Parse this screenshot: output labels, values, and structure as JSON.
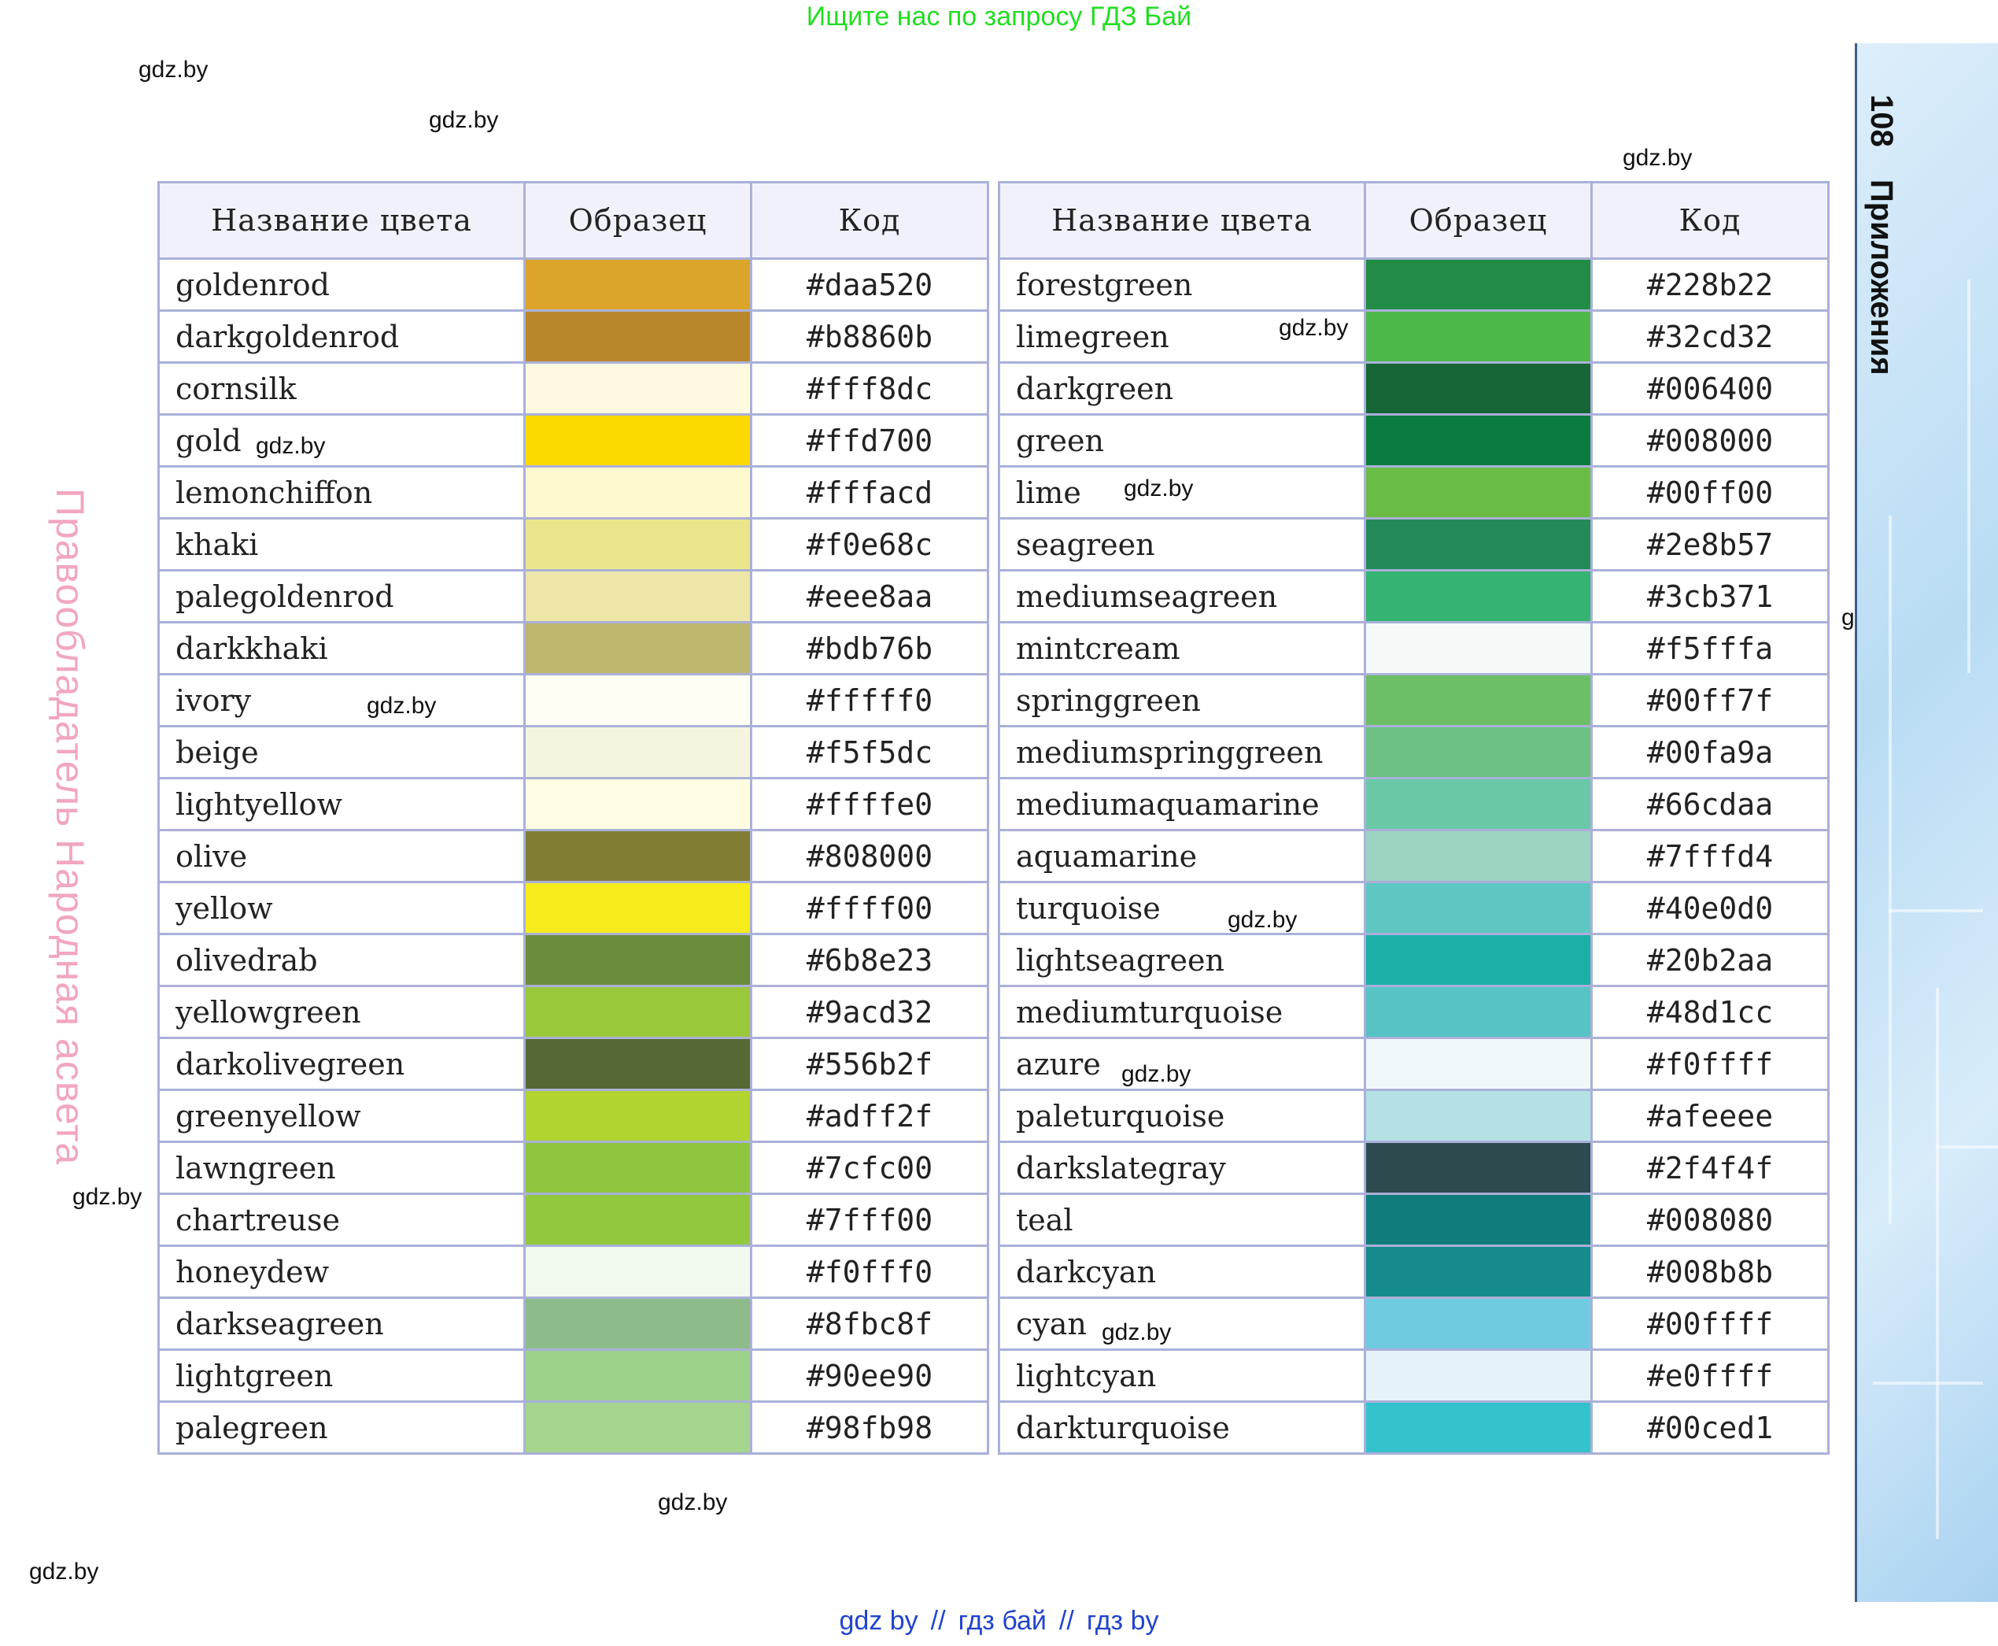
{
  "banner": "Ищите нас по запросу ГДЗ Бай",
  "watermark": "gdz.by",
  "side_label": "Правообладатель Народная асвета",
  "page_header": {
    "number": "108",
    "title": "Приложения"
  },
  "table_headers": {
    "name": "Название цвета",
    "sample": "Образец",
    "code": "Код"
  },
  "left_table": [
    {
      "name": "goldenrod",
      "code": "#daa520",
      "swatch": "#daa52a"
    },
    {
      "name": "darkgoldenrod",
      "code": "#b8860b",
      "swatch": "#b8872c"
    },
    {
      "name": "cornsilk",
      "code": "#fff8dc",
      "swatch": "#fefae0"
    },
    {
      "name": "gold",
      "code": "#ffd700",
      "swatch": "#fcda00"
    },
    {
      "name": "lemonchiffon",
      "code": "#fffacd",
      "swatch": "#fef8cf"
    },
    {
      "name": "khaki",
      "code": "#f0e68c",
      "swatch": "#ebe68c"
    },
    {
      "name": "palegoldenrod",
      "code": "#eee8aa",
      "swatch": "#ede6a8"
    },
    {
      "name": "darkkhaki",
      "code": "#bdb76b",
      "swatch": "#bdb86e"
    },
    {
      "name": "ivory",
      "code": "#fffff0",
      "swatch": "#fefef2"
    },
    {
      "name": "beige",
      "code": "#f5f5dc",
      "swatch": "#f5f5df"
    },
    {
      "name": "lightyellow",
      "code": "#ffffe0",
      "swatch": "#fefde2"
    },
    {
      "name": "olive",
      "code": "#808000",
      "swatch": "#817e33"
    },
    {
      "name": "yellow",
      "code": "#ffff00",
      "swatch": "#f6ec1c"
    },
    {
      "name": "olivedrab",
      "code": "#6b8e23",
      "swatch": "#6a8c3b"
    },
    {
      "name": "yellowgreen",
      "code": "#9acd32",
      "swatch": "#9ac83b"
    },
    {
      "name": "darkolivegreen",
      "code": "#556b2f",
      "swatch": "#556935"
    },
    {
      "name": "greenyellow",
      "code": "#adff2f",
      "swatch": "#b1d430"
    },
    {
      "name": "lawngreen",
      "code": "#7cfc00",
      "swatch": "#8ec63f"
    },
    {
      "name": "chartreuse",
      "code": "#7fff00",
      "swatch": "#91c83c"
    },
    {
      "name": "honeydew",
      "code": "#f0fff0",
      "swatch": "#f1f8ee"
    },
    {
      "name": "darkseagreen",
      "code": "#8fbc8f",
      "swatch": "#8dbb8a"
    },
    {
      "name": "lightgreen",
      "code": "#90ee90",
      "swatch": "#9cd18a"
    },
    {
      "name": "palegreen",
      "code": "#98fb98",
      "swatch": "#a5d48d"
    }
  ],
  "right_table": [
    {
      "name": "forestgreen",
      "code": "#228b22",
      "swatch": "#228b45"
    },
    {
      "name": "limegreen",
      "code": "#32cd32",
      "swatch": "#4cb849"
    },
    {
      "name": "darkgreen",
      "code": "#006400",
      "swatch": "#176638"
    },
    {
      "name": "green",
      "code": "#008000",
      "swatch": "#0b7b41"
    },
    {
      "name": "lime",
      "code": "#00ff00",
      "swatch": "#6bbc45"
    },
    {
      "name": "seagreen",
      "code": "#2e8b57",
      "swatch": "#248a5a"
    },
    {
      "name": "mediumseagreen",
      "code": "#3cb371",
      "swatch": "#35b372"
    },
    {
      "name": "mintcream",
      "code": "#f5fffa",
      "swatch": "#f5faf8"
    },
    {
      "name": "springgreen",
      "code": "#00ff7f",
      "swatch": "#6dbf67"
    },
    {
      "name": "mediumspringgreen",
      "code": "#00fa9a",
      "swatch": "#6cc183"
    },
    {
      "name": "mediumaquamarine",
      "code": "#66cdaa",
      "swatch": "#6ac8a7"
    },
    {
      "name": "aquamarine",
      "code": "#7fffd4",
      "swatch": "#9dd4c1"
    },
    {
      "name": "turquoise",
      "code": "#40e0d0",
      "swatch": "#5fc6c2"
    },
    {
      "name": "lightseagreen",
      "code": "#20b2aa",
      "swatch": "#1bafa8"
    },
    {
      "name": "mediumturquoise",
      "code": "#48d1cc",
      "swatch": "#57c3c4"
    },
    {
      "name": "azure",
      "code": "#f0ffff",
      "swatch": "#f1f8fc"
    },
    {
      "name": "paleturquoise",
      "code": "#afeeee",
      "swatch": "#b3e1e4"
    },
    {
      "name": "darkslategray",
      "code": "#2f4f4f",
      "swatch": "#2d4b4f"
    },
    {
      "name": "teal",
      "code": "#008080",
      "swatch": "#117c7c"
    },
    {
      "name": "darkcyan",
      "code": "#008b8b",
      "swatch": "#168b8b"
    },
    {
      "name": "cyan",
      "code": "#00ffff",
      "swatch": "#6fcce0"
    },
    {
      "name": "lightcyan",
      "code": "#e0ffff",
      "swatch": "#e5f3f9"
    },
    {
      "name": "darkturquoise",
      "code": "#00ced1",
      "swatch": "#34c2cc"
    }
  ],
  "bottom_links": [
    "gdz by",
    "гдз бай",
    "гдз by"
  ],
  "bottom_sep": "//"
}
